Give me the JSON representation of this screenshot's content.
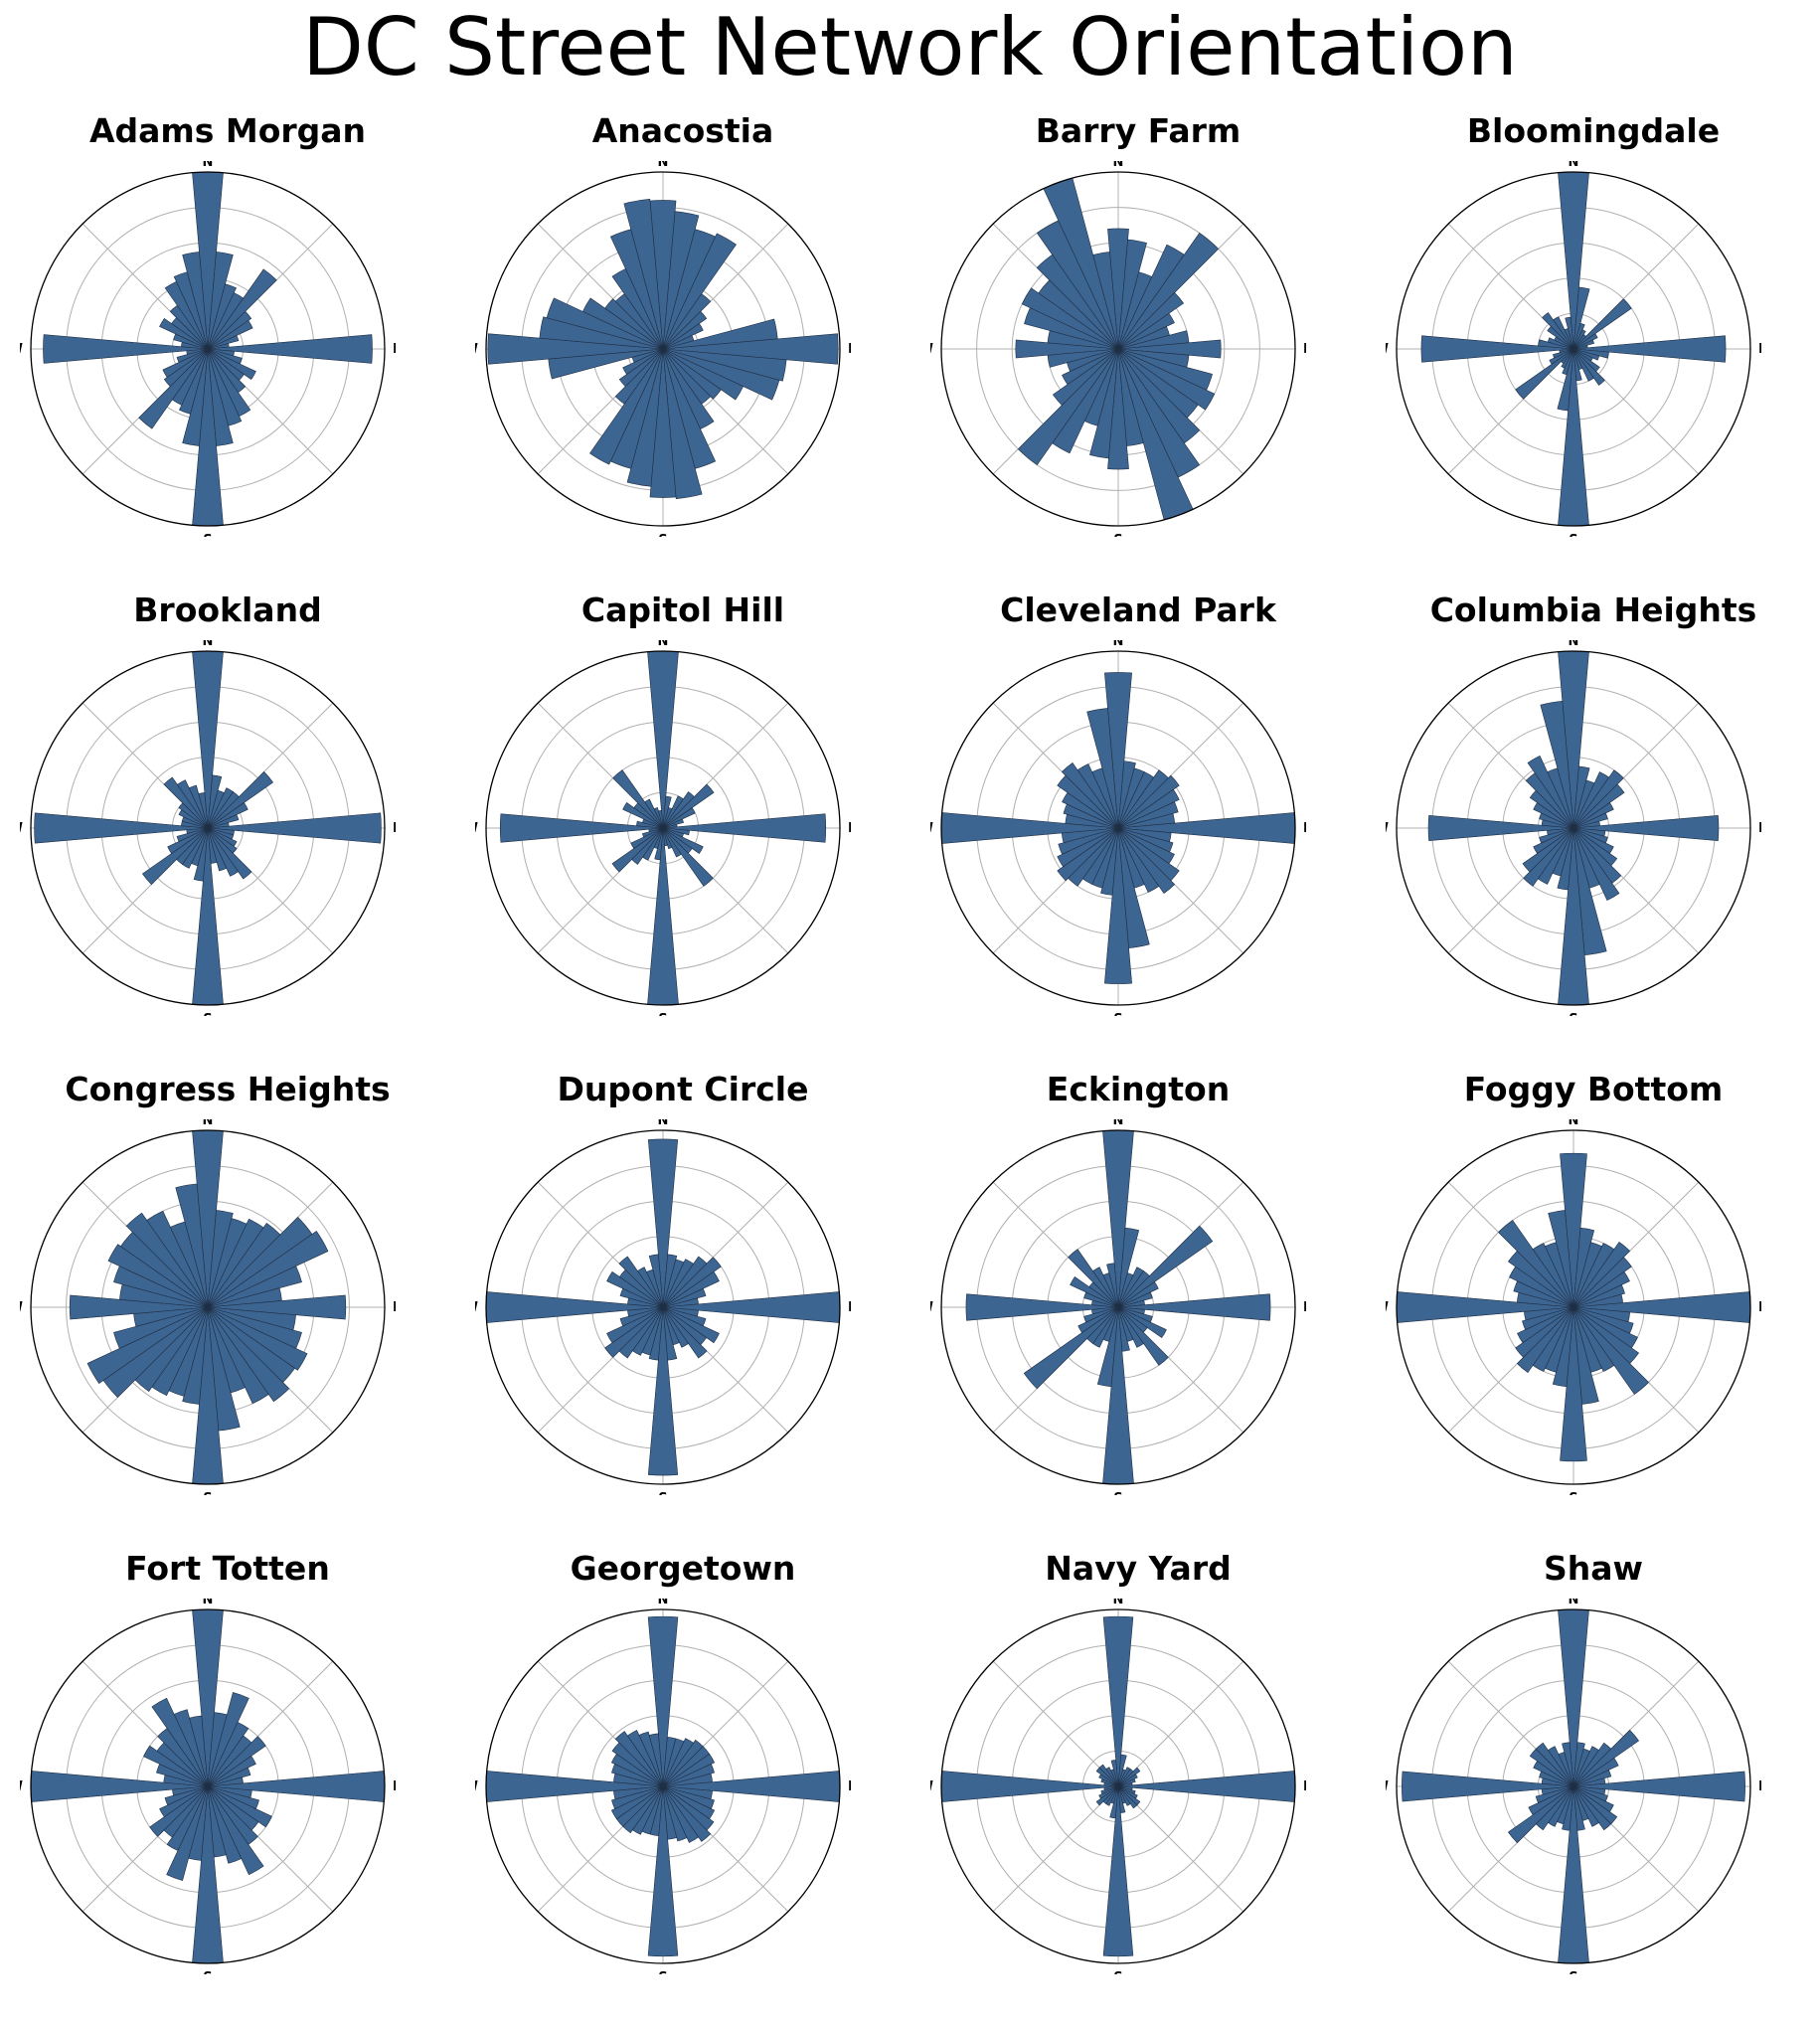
{
  "page_title": "DC Street Network Orientation",
  "colors": {
    "bar_fill": "#3d6592",
    "bar_edge": "#1f2f44",
    "grid": "#b0b0b0",
    "outline": "#000000"
  },
  "direction_labels": {
    "n": "N",
    "e": "E",
    "s": "S",
    "w": "W"
  },
  "chart_data": [
    {
      "type": "polar-bar",
      "title": "Adams Morgan",
      "bins": 36,
      "rmax": 1.0,
      "values": [
        1.0,
        0.55,
        0.38,
        0.35,
        0.55,
        0.3,
        0.28,
        0.18,
        0.12,
        0.93,
        0.15,
        0.2,
        0.3,
        0.25,
        0.3,
        0.42,
        0.45,
        0.55,
        1.0,
        0.55,
        0.38,
        0.35,
        0.55,
        0.3,
        0.28,
        0.18,
        0.12,
        0.93,
        0.15,
        0.2,
        0.3,
        0.25,
        0.3,
        0.42,
        0.45,
        0.55
      ]
    },
    {
      "type": "polar-bar",
      "title": "Anacostia",
      "bins": 36,
      "rmax": 1.0,
      "values": [
        0.84,
        0.78,
        0.7,
        0.72,
        0.38,
        0.3,
        0.25,
        0.18,
        0.65,
        0.99,
        0.7,
        0.68,
        0.5,
        0.4,
        0.38,
        0.5,
        0.7,
        0.85,
        0.84,
        0.78,
        0.7,
        0.72,
        0.38,
        0.3,
        0.25,
        0.18,
        0.65,
        0.99,
        0.7,
        0.68,
        0.5,
        0.4,
        0.38,
        0.5,
        0.7,
        0.85
      ]
    },
    {
      "type": "polar-bar",
      "title": "Barry Farm",
      "bins": 36,
      "rmax": 1.0,
      "values": [
        0.68,
        0.62,
        0.45,
        0.65,
        0.8,
        0.45,
        0.35,
        0.3,
        0.4,
        0.58,
        0.4,
        0.55,
        0.6,
        0.55,
        0.65,
        0.8,
        1.0,
        0.55,
        0.68,
        0.62,
        0.45,
        0.65,
        0.8,
        0.45,
        0.35,
        0.3,
        0.4,
        0.58,
        0.4,
        0.55,
        0.6,
        0.55,
        0.65,
        0.8,
        1.0,
        0.55
      ]
    },
    {
      "type": "polar-bar",
      "title": "Bloomingdale",
      "bins": 36,
      "rmax": 1.0,
      "values": [
        1.0,
        0.35,
        0.15,
        0.12,
        0.1,
        0.4,
        0.15,
        0.12,
        0.08,
        0.86,
        0.2,
        0.15,
        0.12,
        0.18,
        0.25,
        0.2,
        0.12,
        0.18,
        1.0,
        0.35,
        0.15,
        0.12,
        0.1,
        0.4,
        0.15,
        0.12,
        0.08,
        0.86,
        0.2,
        0.15,
        0.12,
        0.18,
        0.25,
        0.2,
        0.12,
        0.18
      ]
    },
    {
      "type": "polar-bar",
      "title": "Brookland",
      "bins": 36,
      "rmax": 1.0,
      "values": [
        1.0,
        0.3,
        0.22,
        0.25,
        0.25,
        0.45,
        0.25,
        0.18,
        0.12,
        0.98,
        0.15,
        0.15,
        0.18,
        0.2,
        0.35,
        0.3,
        0.25,
        0.2,
        1.0,
        0.3,
        0.22,
        0.25,
        0.25,
        0.45,
        0.25,
        0.18,
        0.12,
        0.98,
        0.15,
        0.15,
        0.18,
        0.2,
        0.35,
        0.3,
        0.25,
        0.2
      ]
    },
    {
      "type": "polar-bar",
      "title": "Capitol Hill",
      "bins": 36,
      "rmax": 1.0,
      "values": [
        1.0,
        0.18,
        0.12,
        0.2,
        0.25,
        0.35,
        0.2,
        0.12,
        0.08,
        0.92,
        0.15,
        0.12,
        0.25,
        0.2,
        0.4,
        0.18,
        0.12,
        0.1,
        1.0,
        0.18,
        0.12,
        0.2,
        0.25,
        0.35,
        0.2,
        0.12,
        0.08,
        0.92,
        0.15,
        0.12,
        0.25,
        0.2,
        0.4,
        0.18,
        0.12,
        0.1
      ]
    },
    {
      "type": "polar-bar",
      "title": "Cleveland Park",
      "bins": 36,
      "rmax": 1.0,
      "values": [
        0.88,
        0.38,
        0.35,
        0.35,
        0.4,
        0.42,
        0.38,
        0.35,
        0.32,
        1.0,
        0.3,
        0.32,
        0.35,
        0.42,
        0.45,
        0.4,
        0.35,
        0.68,
        0.88,
        0.38,
        0.35,
        0.35,
        0.4,
        0.42,
        0.38,
        0.35,
        0.32,
        1.0,
        0.3,
        0.32,
        0.35,
        0.42,
        0.45,
        0.4,
        0.35,
        0.68
      ]
    },
    {
      "type": "polar-bar",
      "title": "Columbia Heights",
      "bins": 36,
      "rmax": 1.0,
      "values": [
        1.0,
        0.35,
        0.28,
        0.35,
        0.4,
        0.35,
        0.25,
        0.2,
        0.15,
        0.82,
        0.18,
        0.2,
        0.25,
        0.3,
        0.38,
        0.45,
        0.35,
        0.72,
        1.0,
        0.35,
        0.28,
        0.35,
        0.4,
        0.35,
        0.25,
        0.2,
        0.15,
        0.82,
        0.18,
        0.2,
        0.25,
        0.3,
        0.38,
        0.45,
        0.35,
        0.72
      ]
    },
    {
      "type": "polar-bar",
      "title": "Congress Heights",
      "bins": 36,
      "rmax": 1.0,
      "values": [
        1.0,
        0.55,
        0.52,
        0.55,
        0.58,
        0.72,
        0.75,
        0.55,
        0.42,
        0.78,
        0.5,
        0.55,
        0.62,
        0.6,
        0.65,
        0.6,
        0.5,
        0.7,
        1.0,
        0.55,
        0.52,
        0.55,
        0.58,
        0.72,
        0.75,
        0.55,
        0.42,
        0.78,
        0.5,
        0.55,
        0.62,
        0.6,
        0.65,
        0.6,
        0.5,
        0.7
      ]
    },
    {
      "type": "polar-bar",
      "title": "Dupont Circle",
      "bins": 36,
      "rmax": 1.0,
      "values": [
        0.95,
        0.3,
        0.28,
        0.3,
        0.35,
        0.4,
        0.35,
        0.25,
        0.2,
        1.0,
        0.2,
        0.25,
        0.35,
        0.3,
        0.35,
        0.25,
        0.22,
        0.3,
        0.95,
        0.3,
        0.28,
        0.3,
        0.35,
        0.4,
        0.35,
        0.25,
        0.2,
        1.0,
        0.2,
        0.25,
        0.35,
        0.3,
        0.35,
        0.25,
        0.22,
        0.3
      ]
    },
    {
      "type": "polar-bar",
      "title": "Eckington",
      "bins": 36,
      "rmax": 1.0,
      "values": [
        1.0,
        0.45,
        0.2,
        0.25,
        0.25,
        0.65,
        0.25,
        0.2,
        0.15,
        0.86,
        0.15,
        0.2,
        0.3,
        0.2,
        0.4,
        0.25,
        0.2,
        0.25,
        1.0,
        0.45,
        0.2,
        0.25,
        0.25,
        0.65,
        0.25,
        0.2,
        0.15,
        0.86,
        0.15,
        0.2,
        0.3,
        0.2,
        0.4,
        0.25,
        0.2,
        0.25
      ]
    },
    {
      "type": "polar-bar",
      "title": "Foggy Bottom",
      "bins": 36,
      "rmax": 1.0,
      "values": [
        0.87,
        0.45,
        0.38,
        0.4,
        0.45,
        0.4,
        0.35,
        0.3,
        0.28,
        1.0,
        0.32,
        0.35,
        0.4,
        0.45,
        0.6,
        0.4,
        0.38,
        0.55,
        0.87,
        0.45,
        0.38,
        0.4,
        0.45,
        0.4,
        0.35,
        0.3,
        0.28,
        1.0,
        0.32,
        0.35,
        0.4,
        0.45,
        0.6,
        0.4,
        0.38,
        0.55
      ]
    },
    {
      "type": "polar-bar",
      "title": "Fort Totten",
      "bins": 36,
      "rmax": 1.0,
      "values": [
        1.0,
        0.42,
        0.55,
        0.4,
        0.35,
        0.4,
        0.3,
        0.25,
        0.2,
        1.0,
        0.25,
        0.3,
        0.4,
        0.35,
        0.4,
        0.55,
        0.45,
        0.4,
        1.0,
        0.42,
        0.55,
        0.4,
        0.35,
        0.4,
        0.3,
        0.25,
        0.2,
        1.0,
        0.25,
        0.3,
        0.4,
        0.35,
        0.4,
        0.55,
        0.45,
        0.4
      ]
    },
    {
      "type": "polar-bar",
      "title": "Georgetown",
      "bins": 36,
      "rmax": 1.0,
      "values": [
        0.96,
        0.28,
        0.28,
        0.3,
        0.32,
        0.32,
        0.32,
        0.3,
        0.28,
        1.0,
        0.28,
        0.3,
        0.32,
        0.35,
        0.38,
        0.35,
        0.32,
        0.3,
        0.96,
        0.28,
        0.28,
        0.3,
        0.32,
        0.32,
        0.32,
        0.3,
        0.28,
        1.0,
        0.28,
        0.3,
        0.32,
        0.35,
        0.38,
        0.35,
        0.32,
        0.3
      ]
    },
    {
      "type": "polar-bar",
      "title": "Navy Yard",
      "bins": 36,
      "rmax": 1.0,
      "values": [
        0.96,
        0.18,
        0.1,
        0.12,
        0.12,
        0.15,
        0.12,
        0.1,
        0.08,
        1.0,
        0.08,
        0.1,
        0.12,
        0.15,
        0.15,
        0.12,
        0.1,
        0.15,
        0.96,
        0.18,
        0.1,
        0.12,
        0.12,
        0.15,
        0.12,
        0.1,
        0.08,
        1.0,
        0.08,
        0.1,
        0.12,
        0.15,
        0.15,
        0.12,
        0.1,
        0.15
      ]
    },
    {
      "type": "polar-bar",
      "title": "Shaw",
      "bins": 36,
      "rmax": 1.0,
      "values": [
        1.0,
        0.25,
        0.22,
        0.25,
        0.3,
        0.45,
        0.28,
        0.22,
        0.18,
        0.97,
        0.18,
        0.2,
        0.25,
        0.3,
        0.3,
        0.25,
        0.2,
        0.25,
        1.0,
        0.25,
        0.22,
        0.25,
        0.3,
        0.45,
        0.28,
        0.22,
        0.18,
        0.97,
        0.18,
        0.2,
        0.25,
        0.3,
        0.3,
        0.25,
        0.2,
        0.25
      ]
    }
  ]
}
